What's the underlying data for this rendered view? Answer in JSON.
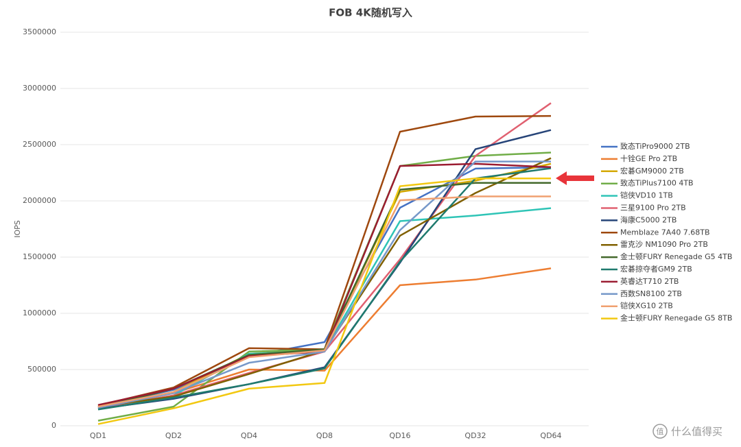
{
  "chart_data": {
    "type": "line",
    "title": "FOB 4K随机写入",
    "y_label": "IOPS",
    "categories": [
      "QD1",
      "QD2",
      "QD4",
      "QD8",
      "QD16",
      "QD32",
      "QD64"
    ],
    "ylim": [
      0,
      3500000
    ],
    "yticks": [
      0,
      500000,
      1000000,
      1500000,
      2000000,
      2500000,
      3000000,
      3500000
    ],
    "grid": true,
    "legend": "right",
    "series": [
      {
        "name": "致态TiPro9000 2TB",
        "color": "#4472c4",
        "values": [
          170000,
          320000,
          620000,
          744000,
          1939000,
          2287000,
          2299000
        ]
      },
      {
        "name": "十铨GE Pro 2TB",
        "color": "#ed7d31",
        "values": [
          170000,
          290000,
          500000,
          490000,
          1250000,
          1300000,
          1400000
        ]
      },
      {
        "name": "宏碁GM9000 2TB",
        "color": "#d4a800",
        "values": [
          160000,
          300000,
          640000,
          680000,
          2080000,
          2180000,
          2330000
        ]
      },
      {
        "name": "致态TiPlus7100 4TB",
        "color": "#70ad47",
        "values": [
          45000,
          170000,
          660000,
          680000,
          2310000,
          2400000,
          2430000
        ]
      },
      {
        "name": "铠侠VD10 1TB",
        "color": "#2ec4b6",
        "values": [
          150000,
          270000,
          640000,
          670000,
          1820000,
          1870000,
          1935000
        ]
      },
      {
        "name": "三星9100 Pro 2TB",
        "color": "#e06070",
        "values": [
          160000,
          270000,
          470000,
          660000,
          1480000,
          2400000,
          2870000
        ]
      },
      {
        "name": "海康C5000 2TB",
        "color": "#264478",
        "values": [
          150000,
          240000,
          370000,
          520000,
          1450000,
          2460000,
          2630000
        ]
      },
      {
        "name": "Memblaze 7A40 7.68TB",
        "color": "#9e480e",
        "values": [
          180000,
          340000,
          690000,
          680000,
          2615000,
          2750000,
          2755000
        ]
      },
      {
        "name": "雷克沙 NM1090 Pro 2TB",
        "color": "#806000",
        "values": [
          170000,
          260000,
          460000,
          670000,
          1690000,
          2070000,
          2380000
        ]
      },
      {
        "name": "金士顿FURY Renegade G5 4TB",
        "color": "#43682b",
        "values": [
          160000,
          330000,
          630000,
          680000,
          2100000,
          2160000,
          2160000
        ]
      },
      {
        "name": "宏碁掠夺者GM9 2TB",
        "color": "#1f7a6e",
        "values": [
          145000,
          250000,
          370000,
          510000,
          1460000,
          2200000,
          2290000
        ]
      },
      {
        "name": "英睿达T710 2TB",
        "color": "#9b1c31",
        "values": [
          185000,
          330000,
          620000,
          660000,
          2310000,
          2330000,
          2300000
        ]
      },
      {
        "name": "西数SN8100 2TB",
        "color": "#7698c9",
        "values": [
          160000,
          290000,
          560000,
          660000,
          1740000,
          2350000,
          2350000
        ]
      },
      {
        "name": "铠侠XG10 2TB",
        "color": "#f0a070",
        "values": [
          170000,
          300000,
          610000,
          670000,
          2005000,
          2040000,
          2040000
        ]
      },
      {
        "name": "金士顿FURY Renegade G5 8TB",
        "color": "#f2c811",
        "values": [
          15000,
          155000,
          330000,
          380000,
          2130000,
          2200000,
          2200000
        ]
      }
    ]
  },
  "watermark": "什么值得买"
}
